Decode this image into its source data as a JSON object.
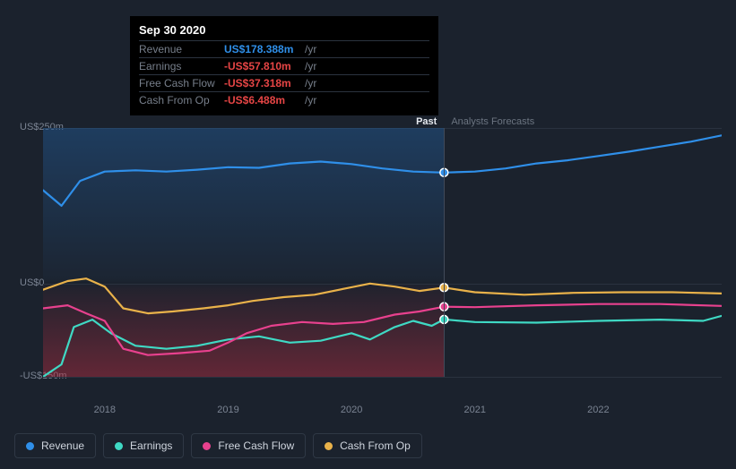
{
  "tooltip": {
    "date": "Sep 30 2020",
    "rows": [
      {
        "label": "Revenue",
        "value": "US$178.388m",
        "color": "#2f8fe9",
        "unit": "/yr"
      },
      {
        "label": "Earnings",
        "value": "-US$57.810m",
        "color": "#e64545",
        "unit": "/yr"
      },
      {
        "label": "Free Cash Flow",
        "value": "-US$37.318m",
        "color": "#e64545",
        "unit": "/yr"
      },
      {
        "label": "Cash From Op",
        "value": "-US$6.488m",
        "color": "#e64545",
        "unit": "/yr"
      }
    ]
  },
  "chart": {
    "type": "line",
    "background_color": "#1b222d",
    "grid_color": "#2a323f",
    "ylim": [
      -150,
      250
    ],
    "y_ticks": [
      {
        "v": 250,
        "label": "US$250m"
      },
      {
        "v": 0,
        "label": "US$0"
      },
      {
        "v": -150,
        "label": "-US$150m"
      }
    ],
    "xlim": [
      2017.5,
      2023.0
    ],
    "x_ticks": [
      {
        "v": 2018,
        "label": "2018"
      },
      {
        "v": 2019,
        "label": "2019"
      },
      {
        "v": 2020,
        "label": "2020"
      },
      {
        "v": 2021,
        "label": "2021"
      },
      {
        "v": 2022,
        "label": "2022"
      }
    ],
    "divider_x": 2020.75,
    "regions": {
      "past": "Past",
      "forecast": "Analysts Forecasts"
    },
    "past_fill_top_color": "rgba(35,93,155,0.45)",
    "past_fill_bottom_color": "rgba(185,45,65,0.45)",
    "line_width": 2.2,
    "marker_radius": 4.5,
    "series": [
      {
        "key": "revenue",
        "label": "Revenue",
        "color": "#2f8fe9",
        "marker_at_divider": 178.4,
        "points": [
          [
            2017.5,
            150
          ],
          [
            2017.65,
            125
          ],
          [
            2017.8,
            165
          ],
          [
            2018.0,
            180
          ],
          [
            2018.25,
            182
          ],
          [
            2018.5,
            180
          ],
          [
            2018.75,
            183
          ],
          [
            2019.0,
            187
          ],
          [
            2019.25,
            186
          ],
          [
            2019.5,
            193
          ],
          [
            2019.75,
            196
          ],
          [
            2020.0,
            192
          ],
          [
            2020.25,
            185
          ],
          [
            2020.5,
            180
          ],
          [
            2020.75,
            178.4
          ],
          [
            2021.0,
            180
          ],
          [
            2021.25,
            185
          ],
          [
            2021.5,
            193
          ],
          [
            2021.75,
            198
          ],
          [
            2022.0,
            205
          ],
          [
            2022.25,
            212
          ],
          [
            2022.5,
            220
          ],
          [
            2022.75,
            228
          ],
          [
            2023.0,
            238
          ]
        ]
      },
      {
        "key": "earnings",
        "label": "Earnings",
        "color": "#3fd9c4",
        "marker_at_divider": -57.8,
        "points": [
          [
            2017.5,
            -150
          ],
          [
            2017.65,
            -130
          ],
          [
            2017.75,
            -70
          ],
          [
            2017.9,
            -58
          ],
          [
            2018.05,
            -80
          ],
          [
            2018.25,
            -100
          ],
          [
            2018.5,
            -105
          ],
          [
            2018.75,
            -100
          ],
          [
            2019.0,
            -90
          ],
          [
            2019.25,
            -85
          ],
          [
            2019.5,
            -95
          ],
          [
            2019.75,
            -92
          ],
          [
            2020.0,
            -80
          ],
          [
            2020.15,
            -90
          ],
          [
            2020.35,
            -70
          ],
          [
            2020.5,
            -60
          ],
          [
            2020.65,
            -68
          ],
          [
            2020.75,
            -57.8
          ],
          [
            2021.0,
            -62
          ],
          [
            2021.5,
            -63
          ],
          [
            2022.0,
            -60
          ],
          [
            2022.5,
            -58
          ],
          [
            2022.85,
            -60
          ],
          [
            2023.0,
            -52
          ]
        ]
      },
      {
        "key": "fcf",
        "label": "Free Cash Flow",
        "color": "#e8418e",
        "marker_at_divider": -37.3,
        "points": [
          [
            2017.5,
            -40
          ],
          [
            2017.7,
            -35
          ],
          [
            2017.85,
            -48
          ],
          [
            2018.0,
            -60
          ],
          [
            2018.15,
            -105
          ],
          [
            2018.35,
            -115
          ],
          [
            2018.6,
            -112
          ],
          [
            2018.85,
            -108
          ],
          [
            2019.0,
            -95
          ],
          [
            2019.15,
            -80
          ],
          [
            2019.35,
            -68
          ],
          [
            2019.6,
            -62
          ],
          [
            2019.85,
            -65
          ],
          [
            2020.1,
            -62
          ],
          [
            2020.35,
            -50
          ],
          [
            2020.55,
            -45
          ],
          [
            2020.75,
            -37.3
          ],
          [
            2021.0,
            -38
          ],
          [
            2021.5,
            -35
          ],
          [
            2022.0,
            -33
          ],
          [
            2022.5,
            -33
          ],
          [
            2023.0,
            -36
          ]
        ]
      },
      {
        "key": "cfo",
        "label": "Cash From Op",
        "color": "#e9b24a",
        "marker_at_divider": -6.5,
        "points": [
          [
            2017.5,
            -10
          ],
          [
            2017.7,
            4
          ],
          [
            2017.85,
            8
          ],
          [
            2018.0,
            -5
          ],
          [
            2018.15,
            -40
          ],
          [
            2018.35,
            -48
          ],
          [
            2018.55,
            -45
          ],
          [
            2018.8,
            -40
          ],
          [
            2019.0,
            -35
          ],
          [
            2019.2,
            -28
          ],
          [
            2019.45,
            -22
          ],
          [
            2019.7,
            -18
          ],
          [
            2019.95,
            -8
          ],
          [
            2020.15,
            0
          ],
          [
            2020.35,
            -5
          ],
          [
            2020.55,
            -12
          ],
          [
            2020.75,
            -6.5
          ],
          [
            2021.0,
            -14
          ],
          [
            2021.4,
            -18
          ],
          [
            2021.8,
            -15
          ],
          [
            2022.2,
            -14
          ],
          [
            2022.6,
            -14
          ],
          [
            2023.0,
            -16
          ]
        ]
      }
    ],
    "legend": [
      {
        "label": "Revenue",
        "color": "#2f8fe9"
      },
      {
        "label": "Earnings",
        "color": "#3fd9c4"
      },
      {
        "label": "Free Cash Flow",
        "color": "#e8418e"
      },
      {
        "label": "Cash From Op",
        "color": "#e9b24a"
      }
    ]
  }
}
